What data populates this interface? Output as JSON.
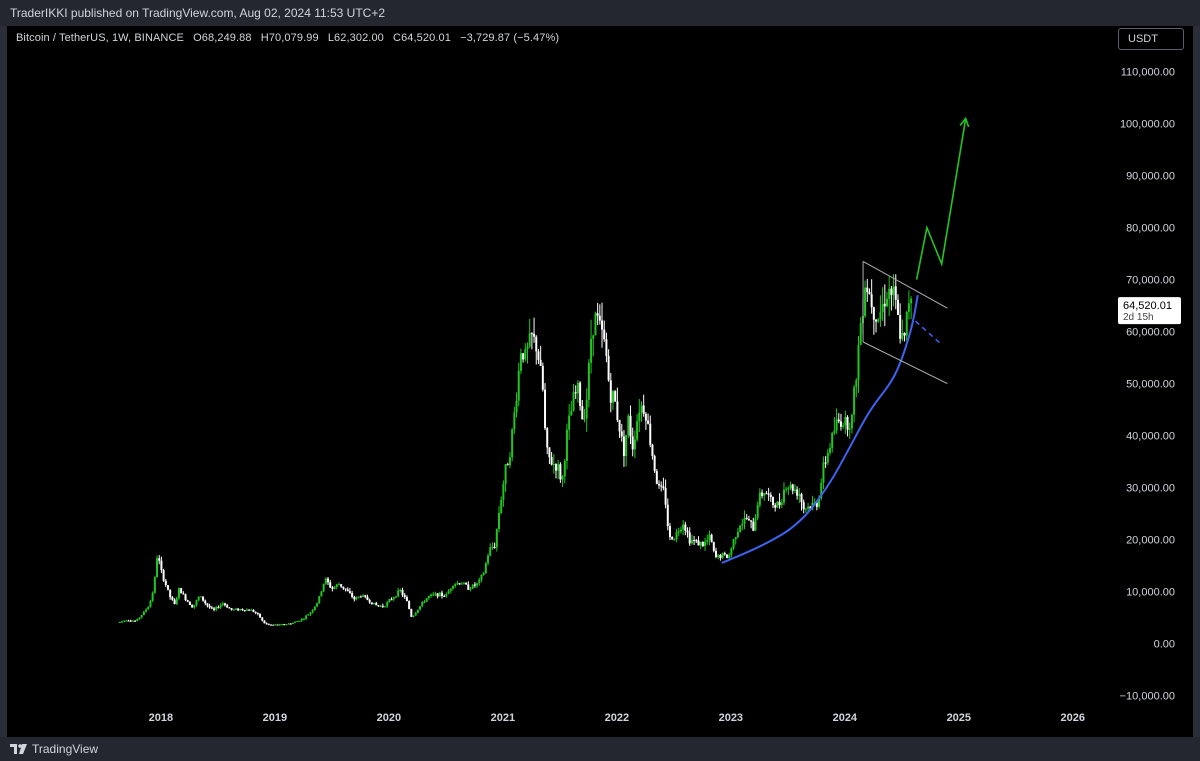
{
  "header": {
    "publish_text": "TraderIKKI published on TradingView.com, Aug 02, 2024 11:53 UTC+2"
  },
  "legend": {
    "symbol": "Bitcoin / TetherUS, 1W, BINANCE",
    "open": "O68,249.88",
    "high": "H70,079.99",
    "low": "L62,302.00",
    "close": "C64,520.01",
    "change": "−3,729.87 (−5.47%)"
  },
  "currency_button": "USDT",
  "price_label": {
    "value": "64,520.01",
    "countdown": "2d 15h"
  },
  "footer": {
    "brand": "TradingView"
  },
  "colors": {
    "up": "#22c522",
    "down": "#ffffff",
    "curve": "#3d63f0",
    "projection": "#22c522",
    "channel": "#b0b0b0",
    "background": "#000000"
  },
  "chart_data": {
    "type": "candlestick",
    "title": "Bitcoin / TetherUS, 1W, BINANCE",
    "ylim": [
      -10000,
      110000
    ],
    "y_ticks": [
      "110,000.00",
      "100,000.00",
      "90,000.00",
      "80,000.00",
      "70,000.00",
      "60,000.00",
      "50,000.00",
      "40,000.00",
      "30,000.00",
      "20,000.00",
      "10,000.00",
      "0.00",
      "−10,000.00"
    ],
    "y_tick_values": [
      110000,
      100000,
      90000,
      80000,
      70000,
      60000,
      50000,
      40000,
      30000,
      20000,
      10000,
      0,
      -10000
    ],
    "x_ticks": [
      "2018",
      "2019",
      "2020",
      "2021",
      "2022",
      "2023",
      "2024",
      "2025",
      "2026"
    ],
    "x_tick_values": [
      2018,
      2019,
      2020,
      2021,
      2022,
      2023,
      2024,
      2025,
      2026
    ],
    "xlim": [
      2016.65,
      2026.3
    ],
    "price_path": [
      [
        2017.62,
        4000
      ],
      [
        2017.7,
        4600
      ],
      [
        2017.78,
        4300
      ],
      [
        2017.85,
        6000
      ],
      [
        2017.9,
        7500
      ],
      [
        2017.94,
        11000
      ],
      [
        2017.97,
        17500
      ],
      [
        2018.0,
        14000
      ],
      [
        2018.04,
        11500
      ],
      [
        2018.08,
        9000
      ],
      [
        2018.12,
        7500
      ],
      [
        2018.16,
        10500
      ],
      [
        2018.22,
        8500
      ],
      [
        2018.28,
        7000
      ],
      [
        2018.34,
        9200
      ],
      [
        2018.4,
        7500
      ],
      [
        2018.46,
        6300
      ],
      [
        2018.54,
        7800
      ],
      [
        2018.62,
        6500
      ],
      [
        2018.7,
        6600
      ],
      [
        2018.8,
        6400
      ],
      [
        2018.86,
        5400
      ],
      [
        2018.9,
        4000
      ],
      [
        2018.95,
        3600
      ],
      [
        2019.05,
        3600
      ],
      [
        2019.15,
        3900
      ],
      [
        2019.25,
        4800
      ],
      [
        2019.32,
        6200
      ],
      [
        2019.38,
        8200
      ],
      [
        2019.44,
        12500
      ],
      [
        2019.5,
        10500
      ],
      [
        2019.56,
        11500
      ],
      [
        2019.62,
        10400
      ],
      [
        2019.7,
        8500
      ],
      [
        2019.76,
        9300
      ],
      [
        2019.84,
        8000
      ],
      [
        2019.9,
        7200
      ],
      [
        2019.96,
        7300
      ],
      [
        2020.04,
        9000
      ],
      [
        2020.1,
        10200
      ],
      [
        2020.16,
        8000
      ],
      [
        2020.2,
        5000
      ],
      [
        2020.26,
        6800
      ],
      [
        2020.34,
        9000
      ],
      [
        2020.42,
        9500
      ],
      [
        2020.5,
        9200
      ],
      [
        2020.56,
        11500
      ],
      [
        2020.64,
        11700
      ],
      [
        2020.7,
        10700
      ],
      [
        2020.78,
        11500
      ],
      [
        2020.83,
        13500
      ],
      [
        2020.88,
        18000
      ],
      [
        2020.93,
        19000
      ],
      [
        2020.97,
        26000
      ],
      [
        2021.02,
        33000
      ],
      [
        2021.07,
        38000
      ],
      [
        2021.12,
        48000
      ],
      [
        2021.16,
        57000
      ],
      [
        2021.2,
        55000
      ],
      [
        2021.25,
        59000
      ],
      [
        2021.3,
        57000
      ],
      [
        2021.35,
        49000
      ],
      [
        2021.38,
        37000
      ],
      [
        2021.42,
        35000
      ],
      [
        2021.48,
        34000
      ],
      [
        2021.52,
        31000
      ],
      [
        2021.56,
        40000
      ],
      [
        2021.62,
        47000
      ],
      [
        2021.66,
        49000
      ],
      [
        2021.7,
        43000
      ],
      [
        2021.74,
        48000
      ],
      [
        2021.78,
        61000
      ],
      [
        2021.82,
        63000
      ],
      [
        2021.86,
        60000
      ],
      [
        2021.9,
        57000
      ],
      [
        2021.94,
        48000
      ],
      [
        2021.98,
        47000
      ],
      [
        2022.02,
        42000
      ],
      [
        2022.06,
        37000
      ],
      [
        2022.1,
        43000
      ],
      [
        2022.14,
        38000
      ],
      [
        2022.2,
        46000
      ],
      [
        2022.25,
        45000
      ],
      [
        2022.3,
        38000
      ],
      [
        2022.36,
        30000
      ],
      [
        2022.42,
        29000
      ],
      [
        2022.46,
        20000
      ],
      [
        2022.52,
        21000
      ],
      [
        2022.58,
        23500
      ],
      [
        2022.64,
        20000
      ],
      [
        2022.7,
        19500
      ],
      [
        2022.76,
        19000
      ],
      [
        2022.82,
        20500
      ],
      [
        2022.86,
        16500
      ],
      [
        2022.92,
        17000
      ],
      [
        2022.98,
        16600
      ],
      [
        2023.04,
        21000
      ],
      [
        2023.08,
        23000
      ],
      [
        2023.14,
        24000
      ],
      [
        2023.2,
        22000
      ],
      [
        2023.24,
        28000
      ],
      [
        2023.3,
        29500
      ],
      [
        2023.36,
        27000
      ],
      [
        2023.42,
        26500
      ],
      [
        2023.48,
        30500
      ],
      [
        2023.54,
        30000
      ],
      [
        2023.6,
        29000
      ],
      [
        2023.64,
        26000
      ],
      [
        2023.7,
        26500
      ],
      [
        2023.76,
        27000
      ],
      [
        2023.82,
        34500
      ],
      [
        2023.86,
        37500
      ],
      [
        2023.92,
        42000
      ],
      [
        2023.96,
        43000
      ],
      [
        2024.02,
        42500
      ],
      [
        2024.06,
        43000
      ],
      [
        2024.1,
        52000
      ],
      [
        2024.14,
        62000
      ],
      [
        2024.18,
        70000
      ],
      [
        2024.22,
        67000
      ],
      [
        2024.28,
        63000
      ],
      [
        2024.32,
        64000
      ],
      [
        2024.36,
        67500
      ],
      [
        2024.4,
        68000
      ],
      [
        2024.44,
        66000
      ],
      [
        2024.48,
        60000
      ],
      [
        2024.52,
        57500
      ],
      [
        2024.56,
        66000
      ],
      [
        2024.58,
        68200
      ],
      [
        2024.59,
        64520
      ]
    ],
    "annotations": {
      "curve_support": [
        [
          2022.92,
          15500
        ],
        [
          2023.3,
          19000
        ],
        [
          2023.6,
          23000
        ],
        [
          2023.85,
          30000
        ],
        [
          2024.05,
          38000
        ],
        [
          2024.22,
          45000
        ],
        [
          2024.4,
          50000
        ],
        [
          2024.48,
          53500
        ],
        [
          2024.55,
          58000
        ],
        [
          2024.6,
          62000
        ],
        [
          2024.64,
          67000
        ]
      ],
      "curve_dashed_extension": [
        [
          2024.62,
          62000
        ],
        [
          2024.85,
          57500
        ]
      ],
      "channel_upper": [
        [
          2024.16,
          73500
        ],
        [
          2024.9,
          64500
        ]
      ],
      "channel_lower": [
        [
          2024.16,
          58000
        ],
        [
          2024.9,
          50000
        ]
      ],
      "projection_path": [
        [
          2024.63,
          70000
        ],
        [
          2024.72,
          80000
        ],
        [
          2024.85,
          73000
        ],
        [
          2025.06,
          101000
        ]
      ]
    }
  }
}
